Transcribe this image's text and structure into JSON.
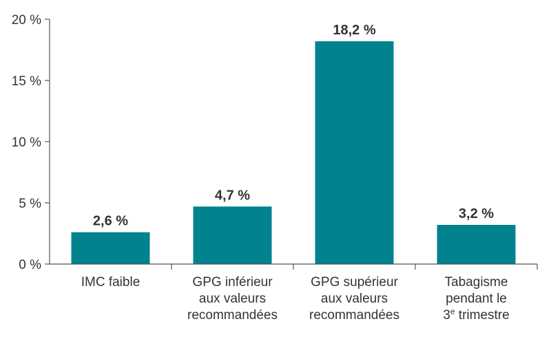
{
  "chart_data": {
    "type": "bar",
    "categories": [
      [
        "IMC faible"
      ],
      [
        "GPG inférieur",
        "aux valeurs",
        "recommandées"
      ],
      [
        "GPG supérieur",
        "aux valeurs",
        "recommandées"
      ],
      [
        "Tabagisme",
        "pendant le",
        "3e trimestre"
      ]
    ],
    "values": [
      2.6,
      4.7,
      18.2,
      3.2
    ],
    "data_labels": [
      "2,6 %",
      "4,7 %",
      "18,2 %",
      "3,2 %"
    ],
    "y_ticks": [
      0,
      5,
      10,
      15,
      20
    ],
    "y_tick_labels": [
      "0 %",
      "5 %",
      "10 %",
      "15 %",
      "20 %"
    ],
    "ylim": [
      0,
      20
    ],
    "title": "",
    "xlabel": "",
    "ylabel": "",
    "grid": false,
    "legend": "none",
    "bar_color": "#00838f",
    "axis_color": "#555555",
    "text_color": "#333333"
  }
}
